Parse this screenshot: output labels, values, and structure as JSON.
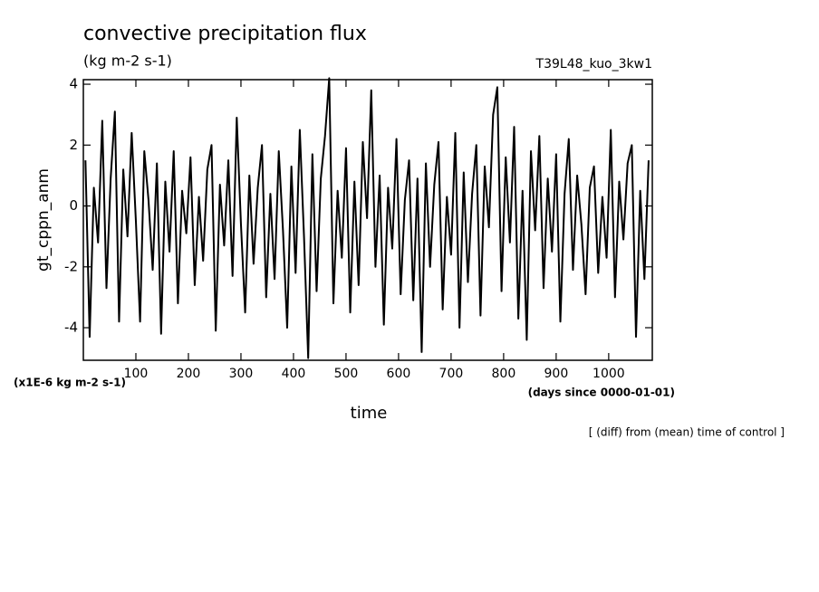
{
  "chart_data": {
    "type": "line",
    "title": "convective precipitation flux",
    "subtitle": "(kg m-2 s-1)",
    "experiment": "T39L48_kuo_3kw1",
    "ylabel": "gt_cppn_anm",
    "xlabel": "time",
    "y_units": "(x1E-6 kg m-2 s-1)",
    "x_units": "(days since 0000-01-01)",
    "note": "[ (diff) from (mean) time of control ]",
    "xlim": [
      0,
      1083
    ],
    "ylim": [
      -5.07,
      4.15
    ],
    "xticks": [
      100,
      200,
      300,
      400,
      500,
      600,
      700,
      800,
      900,
      1000
    ],
    "yticks": [
      -4,
      -2,
      0,
      2,
      4
    ],
    "x": [
      4,
      12,
      20,
      28,
      36,
      44,
      52,
      60,
      68,
      76,
      84,
      92,
      100,
      108,
      116,
      124,
      132,
      140,
      148,
      156,
      164,
      172,
      180,
      188,
      196,
      204,
      212,
      220,
      228,
      236,
      244,
      252,
      260,
      268,
      276,
      284,
      292,
      300,
      308,
      316,
      324,
      332,
      340,
      348,
      356,
      364,
      372,
      380,
      388,
      396,
      404,
      412,
      420,
      428,
      436,
      444,
      452,
      460,
      468,
      476,
      484,
      492,
      500,
      508,
      516,
      524,
      532,
      540,
      548,
      556,
      564,
      572,
      580,
      588,
      596,
      604,
      612,
      620,
      628,
      636,
      644,
      652,
      660,
      668,
      676,
      684,
      692,
      700,
      708,
      716,
      724,
      732,
      740,
      748,
      756,
      764,
      772,
      780,
      788,
      796,
      804,
      812,
      820,
      828,
      836,
      844,
      852,
      860,
      868,
      876,
      884,
      892,
      900,
      908,
      916,
      924,
      932,
      940,
      948,
      956,
      964,
      972,
      980,
      988,
      996,
      1004,
      1012,
      1020,
      1028,
      1036,
      1044,
      1052,
      1060,
      1068,
      1076
    ],
    "series": [
      {
        "name": "gt_cppn_anm",
        "color": "#000000",
        "values": [
          1.5,
          -4.3,
          0.6,
          -1.2,
          2.8,
          -2.7,
          0.9,
          3.1,
          -3.8,
          1.2,
          -1.0,
          2.4,
          -0.5,
          -3.8,
          1.8,
          0.2,
          -2.1,
          1.4,
          -4.2,
          0.8,
          -1.5,
          1.8,
          -3.2,
          0.5,
          -0.9,
          1.6,
          -2.6,
          0.3,
          -1.8,
          1.2,
          2.0,
          -4.1,
          0.7,
          -1.3,
          1.5,
          -2.3,
          2.9,
          -0.6,
          -3.5,
          1.0,
          -1.9,
          0.6,
          2.0,
          -3.0,
          0.4,
          -2.4,
          1.8,
          -0.8,
          -4.0,
          1.3,
          -2.2,
          2.5,
          -1.0,
          -5.0,
          1.7,
          -2.8,
          0.9,
          2.3,
          4.2,
          -3.2,
          0.5,
          -1.7,
          1.9,
          -3.5,
          0.8,
          -2.6,
          2.1,
          -0.4,
          3.8,
          -2.0,
          1.0,
          -3.9,
          0.6,
          -1.4,
          2.2,
          -2.9,
          0.2,
          1.5,
          -3.1,
          0.9,
          -4.8,
          1.4,
          -2.0,
          0.7,
          2.1,
          -3.4,
          0.3,
          -1.6,
          2.4,
          -4.0,
          1.1,
          -2.5,
          0.4,
          2.0,
          -3.6,
          1.3,
          -0.7,
          3.0,
          3.9,
          -2.8,
          1.6,
          -1.2,
          2.6,
          -3.7,
          0.5,
          -4.4,
          1.8,
          -0.8,
          2.3,
          -2.7,
          0.9,
          -1.5,
          1.7,
          -3.8,
          0.4,
          2.2,
          -2.1,
          1.0,
          -0.6,
          -2.9,
          0.6,
          1.3,
          -2.2,
          0.3,
          -1.7,
          2.5,
          -3.0,
          0.8,
          -1.1,
          1.4,
          2.0,
          -4.3,
          0.5,
          -2.4,
          1.5
        ]
      }
    ]
  }
}
